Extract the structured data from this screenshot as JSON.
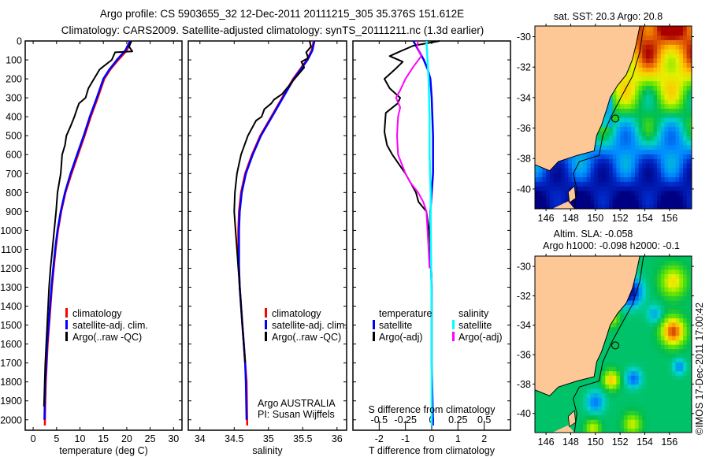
{
  "header": {
    "title_line1": "Argo profile: CS 5903655_32 12-Dec-2011 20111215_305 35.376S 151.612E",
    "title_line2": "Climatology: CARS2009. Satellite-adjusted climatology: synTS_20111211.nc (1.3d earlier)"
  },
  "colors": {
    "climatology": "#ff0000",
    "satellite_adj": "#0000ff",
    "argo": "#000000",
    "sal_satellite": "#00ffff",
    "sal_argo": "#ff00ff",
    "land": "#fdc896"
  },
  "credit": "©IMOS 17-Dec-2011 17:00:42",
  "chart_data": [
    {
      "id": "temperature",
      "type": "line",
      "title": "",
      "xlabel": "temperature (deg C)",
      "ylabel": "",
      "xlim": [
        -1.7,
        31.8
      ],
      "ylim": [
        2055,
        0
      ],
      "xticks": [
        0,
        5,
        10,
        15,
        20,
        25,
        30
      ],
      "yticks": [
        0,
        100,
        200,
        300,
        400,
        500,
        600,
        700,
        800,
        900,
        1000,
        1100,
        1200,
        1300,
        1400,
        1500,
        1600,
        1700,
        1800,
        1900,
        2000
      ],
      "legend": [
        "climatology",
        "satellite-adj. clim.",
        "Argo(..raw -QC)"
      ],
      "legend_position": "lower-center",
      "series": [
        {
          "name": "climatology",
          "color_key": "climatology",
          "x": [
            21.0,
            20.0,
            18.2,
            16.5,
            15.2,
            13.8,
            12.3,
            11.0,
            9.6,
            8.2,
            6.9,
            6.0,
            5.3,
            4.8,
            4.4,
            4.0,
            3.7,
            3.4,
            3.1,
            2.9,
            2.7,
            2.6,
            2.5
          ],
          "y": [
            0,
            50,
            100,
            150,
            200,
            300,
            400,
            500,
            600,
            700,
            800,
            900,
            1000,
            1100,
            1200,
            1300,
            1400,
            1500,
            1600,
            1700,
            1800,
            1900,
            2030
          ]
        },
        {
          "name": "satellite-adj. clim.",
          "color_key": "satellite_adj",
          "x": [
            20.7,
            19.7,
            17.9,
            16.3,
            15.0,
            13.6,
            12.1,
            10.8,
            9.4,
            8.0,
            6.8,
            5.9,
            5.2,
            4.7,
            4.3,
            3.9,
            3.6,
            3.3,
            3.0,
            2.8,
            2.6,
            2.5,
            2.4
          ],
          "y": [
            0,
            50,
            100,
            150,
            200,
            300,
            400,
            500,
            600,
            700,
            800,
            900,
            1000,
            1100,
            1200,
            1300,
            1400,
            1500,
            1600,
            1700,
            1800,
            1900,
            2000
          ]
        },
        {
          "name": "Argo(..raw -QC)",
          "color_key": "argo",
          "x": [
            21.0,
            20.5,
            21.2,
            17.5,
            16.8,
            14.2,
            13.0,
            11.8,
            11.2,
            9.8,
            9.5,
            8.8,
            8.0,
            7.1,
            6.8,
            6.2,
            5.9,
            5.2,
            4.9,
            4.5,
            4.1,
            3.7,
            3.4,
            3.2,
            3.0,
            2.8,
            2.6,
            2.4,
            2.3
          ],
          "y": [
            0,
            30,
            55,
            60,
            100,
            150,
            200,
            250,
            300,
            330,
            350,
            400,
            450,
            500,
            550,
            600,
            700,
            800,
            900,
            1000,
            1100,
            1200,
            1300,
            1400,
            1500,
            1600,
            1700,
            1850,
            1930
          ]
        }
      ]
    },
    {
      "id": "salinity",
      "type": "line",
      "title": "",
      "xlabel": "salinity",
      "ylabel": "",
      "xlim": [
        33.83,
        36.14
      ],
      "ylim": [
        2055,
        0
      ],
      "xticks": [
        34,
        34.5,
        35,
        35.5,
        36
      ],
      "legend": [
        "climatology",
        "satellite-adj. clim.",
        "Argo(..raw -QC)"
      ],
      "legend_position": "lower-right",
      "annotation": [
        "Argo AUSTRALIA",
        "PI: Susan Wijffels"
      ],
      "series": [
        {
          "name": "climatology",
          "color_key": "climatology",
          "x": [
            35.66,
            35.63,
            35.56,
            35.46,
            35.36,
            35.2,
            35.04,
            34.88,
            34.76,
            34.66,
            34.6,
            34.57,
            34.56,
            34.56,
            34.57,
            34.58,
            34.6,
            34.62,
            34.64,
            34.66,
            34.68,
            34.69
          ],
          "y": [
            0,
            50,
            100,
            150,
            200,
            300,
            400,
            500,
            600,
            700,
            800,
            900,
            1000,
            1100,
            1200,
            1300,
            1400,
            1500,
            1600,
            1700,
            1800,
            2030
          ]
        },
        {
          "name": "satellite-adj. clim.",
          "color_key": "satellite_adj",
          "x": [
            35.67,
            35.64,
            35.57,
            35.47,
            35.37,
            35.21,
            35.05,
            34.89,
            34.77,
            34.67,
            34.61,
            34.58,
            34.57,
            34.57,
            34.57,
            34.58,
            34.6,
            34.62,
            34.64,
            34.66,
            34.67,
            34.68
          ],
          "y": [
            0,
            50,
            100,
            150,
            200,
            300,
            400,
            500,
            600,
            700,
            800,
            900,
            1000,
            1100,
            1200,
            1300,
            1400,
            1500,
            1600,
            1700,
            1800,
            2000
          ]
        },
        {
          "name": "Argo(..raw -QC)",
          "color_key": "argo",
          "x": [
            35.6,
            35.62,
            35.55,
            35.58,
            35.48,
            35.52,
            35.38,
            35.2,
            35.08,
            35.04,
            34.94,
            34.9,
            34.82,
            34.7,
            34.6,
            34.54,
            34.51,
            34.5,
            34.52,
            34.54,
            34.56,
            34.58,
            34.6,
            34.62,
            34.64,
            34.66
          ],
          "y": [
            0,
            30,
            60,
            90,
            110,
            140,
            200,
            280,
            310,
            330,
            360,
            400,
            420,
            500,
            600,
            700,
            800,
            900,
            1000,
            1100,
            1200,
            1300,
            1400,
            1500,
            1600,
            1700
          ]
        }
      ]
    },
    {
      "id": "difference",
      "type": "line",
      "title": "",
      "xlabel": "T difference from climatology",
      "xlabel_top": "S difference from climatology",
      "xlim": [
        -3.0,
        3.0
      ],
      "xlim_salinity": [
        -0.75,
        0.75
      ],
      "ylim": [
        2055,
        0
      ],
      "xticks": [
        -2,
        -1,
        0,
        1,
        2
      ],
      "xtick_labels_salinity": [
        "-0.5",
        "-0.25",
        "0",
        "0.25",
        "0.5"
      ],
      "xticks_salinity": [
        -0.5,
        -0.25,
        0,
        0.25,
        0.5
      ],
      "legend": {
        "temperature_header": "temperature",
        "salinity_header": "salinity",
        "entries": [
          "satellite",
          "Argo(-adj)",
          "satellite",
          "Argo(-adj)"
        ]
      },
      "legend_position": "lower-center",
      "series": [
        {
          "name": "temperature satellite",
          "color_key": "satellite_adj",
          "axis": "T",
          "x": [
            -0.7,
            -0.5,
            -0.3,
            -0.15,
            -0.05,
            0.0,
            0.05,
            0.05,
            -0.05,
            -0.05,
            0.0,
            0.0,
            0.05
          ],
          "y": [
            0,
            50,
            100,
            150,
            200,
            300,
            500,
            700,
            900,
            1100,
            1300,
            1700,
            2030
          ]
        },
        {
          "name": "temperature Argo(-adj)",
          "color_key": "argo",
          "axis": "T",
          "x": [
            0.3,
            -0.7,
            -1.2,
            -1.6,
            -1.1,
            -1.4,
            -1.8,
            -1.6,
            -1.2,
            -1.3,
            -1.75,
            -1.8,
            -1.7,
            -1.5,
            -1.0,
            -0.6,
            -0.5,
            -0.2,
            -0.1,
            -0.05,
            0.0
          ],
          "y": [
            0,
            25,
            55,
            80,
            110,
            150,
            200,
            250,
            300,
            330,
            380,
            480,
            550,
            600,
            700,
            800,
            850,
            900,
            1000,
            1100,
            1250
          ]
        },
        {
          "name": "salinity satellite",
          "color_key": "sal_satellite",
          "axis": "S",
          "x": [
            -0.05,
            -0.04,
            -0.03,
            -0.02,
            -0.02,
            -0.01,
            -0.01,
            0.0,
            0.0,
            0.0
          ],
          "y": [
            0,
            100,
            200,
            400,
            600,
            800,
            1000,
            1400,
            1700,
            2030
          ]
        },
        {
          "name": "salinity Argo(-adj)",
          "color_key": "sal_argo",
          "axis": "S",
          "x": [
            -0.13,
            -0.14,
            -0.1,
            -0.18,
            -0.25,
            -0.3,
            -0.34,
            -0.3,
            -0.32,
            -0.33,
            -0.32,
            -0.25,
            -0.2,
            -0.13,
            -0.08,
            -0.05,
            -0.04,
            -0.03,
            -0.02
          ],
          "y": [
            0,
            30,
            80,
            140,
            200,
            260,
            300,
            350,
            400,
            500,
            600,
            700,
            750,
            800,
            850,
            900,
            1000,
            1100,
            1200
          ]
        }
      ]
    },
    {
      "id": "map-sst",
      "type": "heatmap",
      "title": "sat. SST: 20.3 Argo: 20.8",
      "xlim": [
        145.1,
        157.8
      ],
      "ylim": [
        -41.3,
        -29.3
      ],
      "xticks": [
        146,
        148,
        150,
        152,
        154,
        156
      ],
      "yticks": [
        -30,
        -32,
        -34,
        -36,
        -38,
        -40
      ],
      "argo_position": {
        "lon": 151.612,
        "lat": -35.376
      },
      "sst_argo": 20.8,
      "sst_satellite": 20.3
    },
    {
      "id": "map-sla",
      "type": "heatmap",
      "title_line1": "Altim. SLA: -0.058",
      "title_line2": "Argo h1000: -0.098 h2000: -0.1",
      "xlim": [
        145.1,
        157.8
      ],
      "ylim": [
        -41.3,
        -29.3
      ],
      "xticks": [
        146,
        148,
        150,
        152,
        154,
        156
      ],
      "yticks": [
        -30,
        -32,
        -34,
        -36,
        -38,
        -40
      ],
      "argo_position": {
        "lon": 151.612,
        "lat": -35.376
      },
      "sla": -0.058,
      "argo_h1000": -0.098,
      "argo_h2000": -0.1
    }
  ]
}
